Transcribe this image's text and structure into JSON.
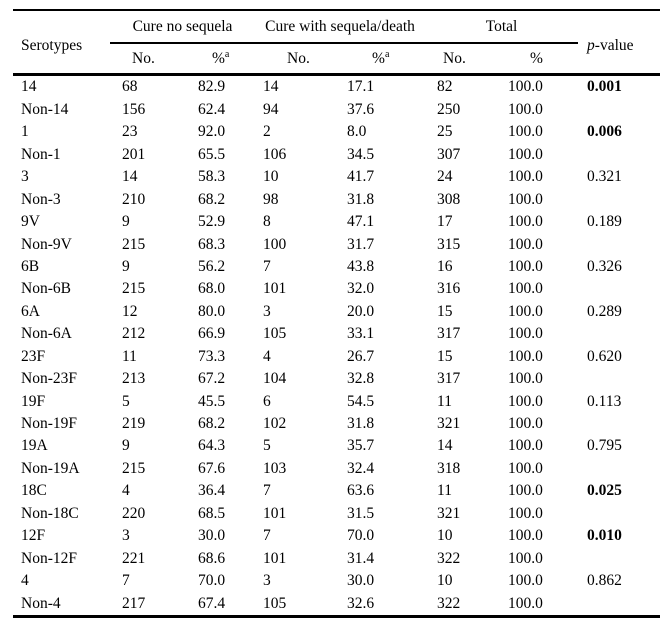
{
  "table": {
    "columns": {
      "serotypes": "Serotypes",
      "group_cure_no_sequela": "Cure no sequela",
      "group_cure_with_sequela_death": "Cure with sequela/death",
      "group_total": "Total",
      "pvalue_italic": "p",
      "pvalue_rest": "-value",
      "no_label": "No.",
      "pct_label": "%",
      "footnote_marker": "a"
    },
    "rows": [
      {
        "serotype": "14",
        "cure_no_sequela_no": "68",
        "cure_no_sequela_pct": "82.9",
        "cure_sequela_no": "14",
        "cure_sequela_pct": "17.1",
        "total_no": "82",
        "total_pct": "100.0",
        "p_value": "0.001",
        "p_bold": true
      },
      {
        "serotype": "Non-14",
        "cure_no_sequela_no": "156",
        "cure_no_sequela_pct": "62.4",
        "cure_sequela_no": "94",
        "cure_sequela_pct": "37.6",
        "total_no": "250",
        "total_pct": "100.0",
        "p_value": "",
        "p_bold": false
      },
      {
        "serotype": "1",
        "cure_no_sequela_no": "23",
        "cure_no_sequela_pct": "92.0",
        "cure_sequela_no": "2",
        "cure_sequela_pct": "8.0",
        "total_no": "25",
        "total_pct": "100.0",
        "p_value": "0.006",
        "p_bold": true
      },
      {
        "serotype": "Non-1",
        "cure_no_sequela_no": "201",
        "cure_no_sequela_pct": "65.5",
        "cure_sequela_no": "106",
        "cure_sequela_pct": "34.5",
        "total_no": "307",
        "total_pct": "100.0",
        "p_value": "",
        "p_bold": false
      },
      {
        "serotype": "3",
        "cure_no_sequela_no": "14",
        "cure_no_sequela_pct": "58.3",
        "cure_sequela_no": "10",
        "cure_sequela_pct": "41.7",
        "total_no": "24",
        "total_pct": "100.0",
        "p_value": "0.321",
        "p_bold": false
      },
      {
        "serotype": "Non-3",
        "cure_no_sequela_no": "210",
        "cure_no_sequela_pct": "68.2",
        "cure_sequela_no": "98",
        "cure_sequela_pct": "31.8",
        "total_no": "308",
        "total_pct": "100.0",
        "p_value": "",
        "p_bold": false
      },
      {
        "serotype": "9V",
        "cure_no_sequela_no": "9",
        "cure_no_sequela_pct": "52.9",
        "cure_sequela_no": "8",
        "cure_sequela_pct": "47.1",
        "total_no": "17",
        "total_pct": "100.0",
        "p_value": "0.189",
        "p_bold": false
      },
      {
        "serotype": "Non-9V",
        "cure_no_sequela_no": "215",
        "cure_no_sequela_pct": "68.3",
        "cure_sequela_no": "100",
        "cure_sequela_pct": "31.7",
        "total_no": "315",
        "total_pct": "100.0",
        "p_value": "",
        "p_bold": false
      },
      {
        "serotype": "6B",
        "cure_no_sequela_no": "9",
        "cure_no_sequela_pct": "56.2",
        "cure_sequela_no": "7",
        "cure_sequela_pct": "43.8",
        "total_no": "16",
        "total_pct": "100.0",
        "p_value": "0.326",
        "p_bold": false
      },
      {
        "serotype": "Non-6B",
        "cure_no_sequela_no": "215",
        "cure_no_sequela_pct": "68.0",
        "cure_sequela_no": "101",
        "cure_sequela_pct": "32.0",
        "total_no": "316",
        "total_pct": "100.0",
        "p_value": "",
        "p_bold": false
      },
      {
        "serotype": "6A",
        "cure_no_sequela_no": "12",
        "cure_no_sequela_pct": "80.0",
        "cure_sequela_no": "3",
        "cure_sequela_pct": "20.0",
        "total_no": "15",
        "total_pct": "100.0",
        "p_value": "0.289",
        "p_bold": false
      },
      {
        "serotype": "Non-6A",
        "cure_no_sequela_no": "212",
        "cure_no_sequela_pct": "66.9",
        "cure_sequela_no": "105",
        "cure_sequela_pct": "33.1",
        "total_no": "317",
        "total_pct": "100.0",
        "p_value": "",
        "p_bold": false
      },
      {
        "serotype": "23F",
        "cure_no_sequela_no": "11",
        "cure_no_sequela_pct": "73.3",
        "cure_sequela_no": "4",
        "cure_sequela_pct": "26.7",
        "total_no": "15",
        "total_pct": "100.0",
        "p_value": "0.620",
        "p_bold": false
      },
      {
        "serotype": "Non-23F",
        "cure_no_sequela_no": "213",
        "cure_no_sequela_pct": "67.2",
        "cure_sequela_no": "104",
        "cure_sequela_pct": "32.8",
        "total_no": "317",
        "total_pct": "100.0",
        "p_value": "",
        "p_bold": false
      },
      {
        "serotype": "19F",
        "cure_no_sequela_no": "5",
        "cure_no_sequela_pct": "45.5",
        "cure_sequela_no": "6",
        "cure_sequela_pct": "54.5",
        "total_no": "11",
        "total_pct": "100.0",
        "p_value": "0.113",
        "p_bold": false
      },
      {
        "serotype": "Non-19F",
        "cure_no_sequela_no": "219",
        "cure_no_sequela_pct": "68.2",
        "cure_sequela_no": "102",
        "cure_sequela_pct": "31.8",
        "total_no": "321",
        "total_pct": "100.0",
        "p_value": "",
        "p_bold": false
      },
      {
        "serotype": "19A",
        "cure_no_sequela_no": "9",
        "cure_no_sequela_pct": "64.3",
        "cure_sequela_no": "5",
        "cure_sequela_pct": "35.7",
        "total_no": "14",
        "total_pct": "100.0",
        "p_value": "0.795",
        "p_bold": false
      },
      {
        "serotype": "Non-19A",
        "cure_no_sequela_no": "215",
        "cure_no_sequela_pct": "67.6",
        "cure_sequela_no": "103",
        "cure_sequela_pct": "32.4",
        "total_no": "318",
        "total_pct": "100.0",
        "p_value": "",
        "p_bold": false
      },
      {
        "serotype": "18C",
        "cure_no_sequela_no": "4",
        "cure_no_sequela_pct": "36.4",
        "cure_sequela_no": "7",
        "cure_sequela_pct": "63.6",
        "total_no": "11",
        "total_pct": "100.0",
        "p_value": "0.025",
        "p_bold": true
      },
      {
        "serotype": "Non-18C",
        "cure_no_sequela_no": "220",
        "cure_no_sequela_pct": "68.5",
        "cure_sequela_no": "101",
        "cure_sequela_pct": "31.5",
        "total_no": "321",
        "total_pct": "100.0",
        "p_value": "",
        "p_bold": false
      },
      {
        "serotype": "12F",
        "cure_no_sequela_no": "3",
        "cure_no_sequela_pct": "30.0",
        "cure_sequela_no": "7",
        "cure_sequela_pct": "70.0",
        "total_no": "10",
        "total_pct": "100.0",
        "p_value": "0.010",
        "p_bold": true
      },
      {
        "serotype": "Non-12F",
        "cure_no_sequela_no": "221",
        "cure_no_sequela_pct": "68.6",
        "cure_sequela_no": "101",
        "cure_sequela_pct": "31.4",
        "total_no": "322",
        "total_pct": "100.0",
        "p_value": "",
        "p_bold": false
      },
      {
        "serotype": "4",
        "cure_no_sequela_no": "7",
        "cure_no_sequela_pct": "70.0",
        "cure_sequela_no": "3",
        "cure_sequela_pct": "30.0",
        "total_no": "10",
        "total_pct": "100.0",
        "p_value": "0.862",
        "p_bold": false
      },
      {
        "serotype": "Non-4",
        "cure_no_sequela_no": "217",
        "cure_no_sequela_pct": "67.4",
        "cure_sequela_no": "105",
        "cure_sequela_pct": "32.6",
        "total_no": "322",
        "total_pct": "100.0",
        "p_value": "",
        "p_bold": false
      }
    ]
  }
}
